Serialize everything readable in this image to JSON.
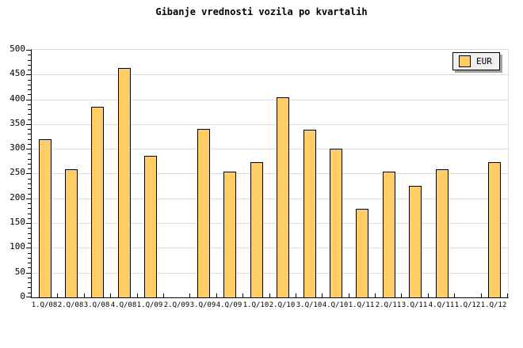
{
  "title": "Gibanje vrednosti vozila po kvartalih",
  "legend": {
    "label": "EUR"
  },
  "colors": {
    "background": "#FFFFFF",
    "bar_fill": "#FFCC66",
    "bar_border": "#000000",
    "grid": "#DCDCDC",
    "frame": "#DCDCDC",
    "axis": "#000000",
    "legend_bg": "#F0F0F0",
    "legend_shadow": "#A6A6A6",
    "text": "#000000"
  },
  "chart_data": {
    "type": "bar",
    "title": "Gibanje vrednosti vozila po kvartalih",
    "series": [
      {
        "name": "EUR",
        "values": [
          318,
          257,
          384,
          462,
          284,
          null,
          338,
          252,
          271,
          403,
          337,
          298,
          178,
          252,
          224,
          257,
          null,
          271
        ]
      }
    ],
    "categories": [
      "1.Q/08",
      "2.Q/08",
      "3.Q/08",
      "4.Q/08",
      "1.Q/09",
      "2.Q/09",
      "3.Q/09",
      "4.Q/09",
      "1.Q/10",
      "2.Q/10",
      "3.Q/10",
      "4.Q/10",
      "1.Q/11",
      "2.Q/11",
      "3.Q/11",
      "4.Q/11",
      "1.Q/12",
      "1.Q/12"
    ],
    "xlabel": "",
    "ylabel": "",
    "ylim": [
      0,
      500
    ],
    "y_major_step": 50,
    "y_minor_step": 10,
    "grid": "horizontal-major",
    "legend_position": "top-right"
  }
}
